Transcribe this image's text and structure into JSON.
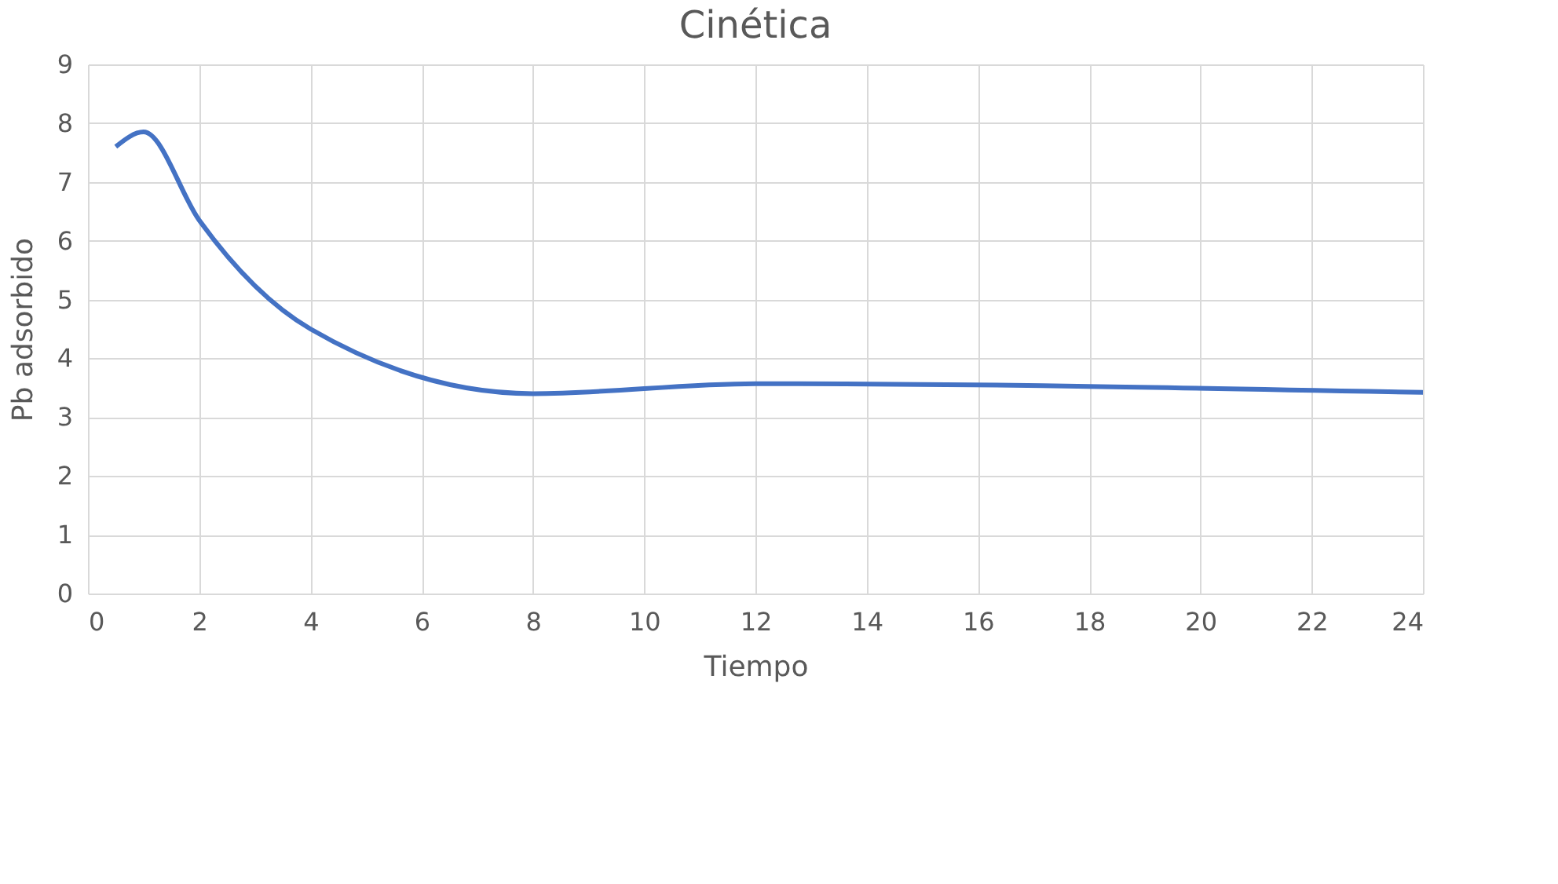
{
  "chart_data": {
    "type": "line",
    "title": "Cinética",
    "xlabel": "Tiempo",
    "ylabel": "Pb adsorbido",
    "x": [
      0.5,
      1,
      2,
      4,
      8,
      12,
      24
    ],
    "series": [
      {
        "color": "#4472c4",
        "values": [
          7.6,
          7.85,
          6.35,
          4.5,
          3.4,
          3.57,
          3.42
        ]
      }
    ],
    "xlim": [
      0,
      24
    ],
    "xticks": [
      0,
      2,
      4,
      6,
      8,
      10,
      12,
      14,
      16,
      18,
      20,
      22,
      24
    ],
    "ylim": [
      0,
      9
    ],
    "yticks": [
      0,
      1,
      2,
      3,
      4,
      5,
      6,
      7,
      8,
      9
    ],
    "grid": true,
    "marker": "none",
    "line_style": "solid"
  }
}
